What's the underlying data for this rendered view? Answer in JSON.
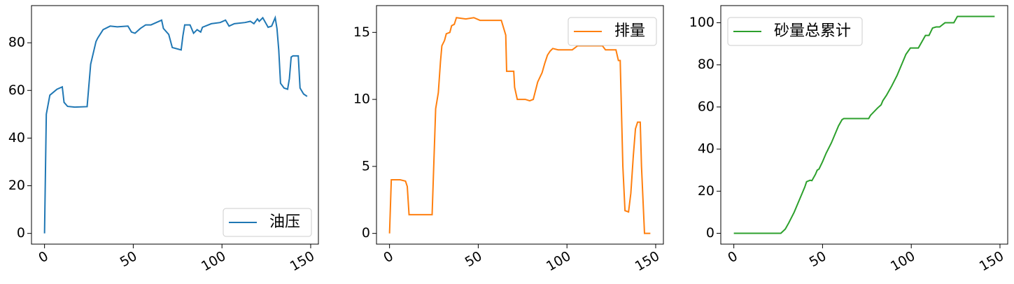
{
  "chart_data": [
    {
      "type": "line",
      "x": [
        0,
        1,
        3,
        7,
        10,
        11,
        13,
        17,
        24,
        26,
        29,
        30,
        33,
        37,
        41,
        47,
        49,
        51,
        54,
        57,
        60,
        63,
        66,
        67,
        70,
        72,
        77,
        78,
        79,
        82,
        84,
        86,
        88,
        89,
        94,
        99,
        102,
        104,
        107,
        113,
        116,
        118,
        120,
        121,
        123,
        126,
        128,
        130,
        131,
        132,
        133,
        135,
        137,
        138,
        139,
        140,
        143,
        144,
        146,
        148
      ],
      "series": [
        {
          "name": "油压",
          "color": "#1f77b4",
          "values": [
            0,
            50,
            58,
            60.5,
            61.5,
            55,
            53.3,
            53,
            53.2,
            71,
            80.5,
            82,
            85.5,
            87,
            86.7,
            87,
            84.5,
            84,
            86,
            87.5,
            87.5,
            88.5,
            89.5,
            86,
            83.5,
            78,
            77,
            83,
            87.5,
            87.5,
            84,
            85.5,
            84.5,
            86.5,
            88,
            88.5,
            89.5,
            87,
            88,
            88.5,
            89,
            88,
            90,
            89,
            90.5,
            86.5,
            87,
            90.5,
            86,
            77,
            63,
            61,
            60.5,
            65,
            74,
            74.5,
            74.5,
            61,
            58.5,
            57.5
          ]
        }
      ],
      "xlim": [
        -7.35,
        154.35
      ],
      "ylim": [
        -4.5,
        95.6
      ],
      "xticks": [
        0,
        50,
        100,
        150
      ],
      "yticks": [
        0,
        20,
        40,
        60,
        80
      ],
      "legend": "lower right"
    },
    {
      "type": "line",
      "x": [
        0,
        1,
        6,
        9,
        10,
        11,
        24,
        26,
        27.5,
        28.7,
        29.5,
        31,
        32,
        34,
        35,
        36.5,
        37.7,
        43,
        47.5,
        51,
        63,
        65.5,
        66,
        70,
        70.5,
        72,
        76.5,
        79,
        81,
        83.5,
        86,
        87.5,
        89,
        90.5,
        92,
        95,
        103,
        106,
        120,
        121.7,
        127.6,
        129,
        130,
        131.5,
        132.7,
        134.7,
        136,
        137.4,
        138.6,
        139.8,
        141.3,
        142,
        143.7,
        147
      ],
      "series": [
        {
          "name": "排量",
          "color": "#ff7f0e",
          "values": [
            0,
            4.0,
            4.0,
            3.9,
            3.5,
            1.4,
            1.4,
            9.3,
            10.5,
            12.8,
            14.0,
            14.4,
            14.9,
            15.0,
            15.5,
            15.6,
            16.1,
            16.0,
            16.1,
            15.9,
            15.9,
            14.8,
            12.1,
            12.1,
            10.9,
            10.0,
            10.0,
            9.9,
            10.0,
            11.3,
            12.0,
            12.7,
            13.3,
            13.6,
            13.8,
            13.7,
            13.7,
            14.0,
            14.0,
            13.7,
            13.7,
            12.9,
            12.9,
            5.0,
            1.7,
            1.6,
            3.0,
            5.8,
            7.8,
            8.3,
            8.3,
            5.0,
            0,
            0
          ]
        }
      ],
      "xlim": [
        -7.35,
        154.35
      ],
      "ylim": [
        -0.8,
        17
      ],
      "xticks": [
        0,
        50,
        100,
        150
      ],
      "yticks": [
        0,
        5,
        10,
        15
      ],
      "legend": "upper right"
    },
    {
      "type": "line",
      "x": [
        0,
        26.5,
        29,
        31,
        34,
        36,
        38,
        40,
        41,
        43,
        44,
        46,
        47,
        48,
        50,
        52,
        55,
        57,
        59,
        61,
        62,
        64,
        76,
        77,
        81,
        83,
        84,
        86,
        89,
        92,
        95,
        97,
        99.5,
        104,
        106,
        108,
        110,
        112,
        114,
        116,
        119,
        124,
        126,
        147
      ],
      "series": [
        {
          "name": "砂量总累计",
          "color": "#2ca02c",
          "values": [
            0,
            0,
            2,
            5,
            10,
            14,
            18,
            22,
            24.5,
            25.2,
            25,
            28,
            30,
            30.5,
            34,
            38,
            43,
            47,
            51,
            54,
            54.5,
            54.5,
            54.5,
            56,
            59.5,
            61,
            63,
            65.5,
            70,
            75,
            81,
            85,
            88,
            88,
            91,
            94,
            94,
            97.5,
            98,
            98,
            100,
            100,
            103,
            103
          ]
        }
      ],
      "xlim": [
        -7.35,
        154.35
      ],
      "ylim": [
        -5.15,
        108.15
      ],
      "xticks": [
        0,
        50,
        100,
        150
      ],
      "yticks": [
        0,
        20,
        40,
        60,
        80,
        100
      ],
      "legend": "upper left"
    }
  ]
}
